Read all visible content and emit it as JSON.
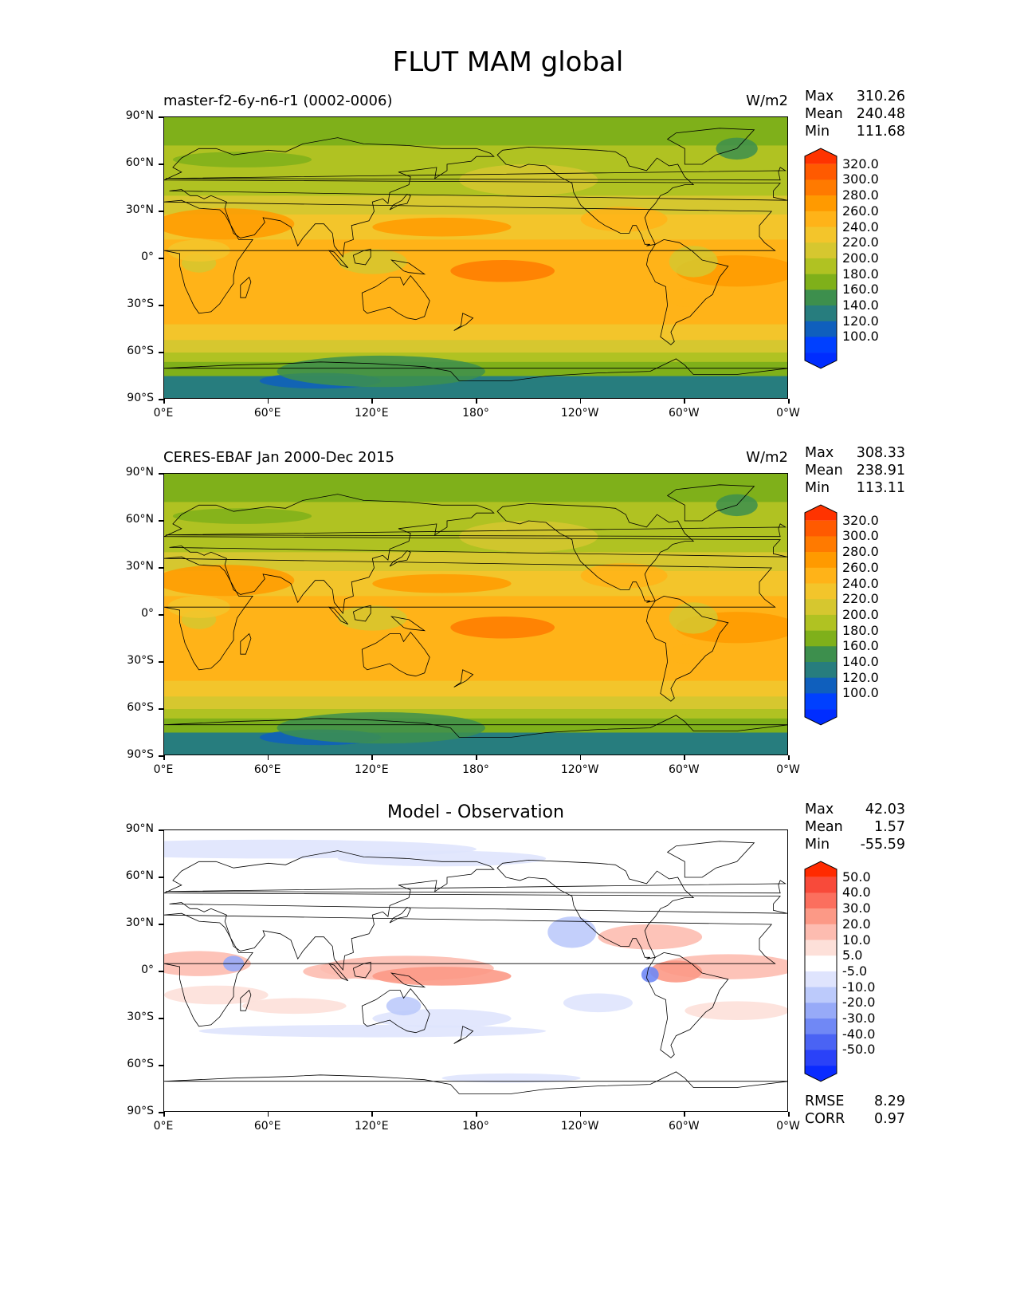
{
  "figure_title": "FLUT MAM global",
  "panels": [
    {
      "id": "model",
      "left_title": "master-f2-6y-n6-r1 (0002-0006)",
      "right_title": "W/m2",
      "center_title": "",
      "stats": {
        "max_label": "Max",
        "max": "310.26",
        "mean_label": "Mean",
        "mean": "240.48",
        "min_label": "Min",
        "min": "111.68"
      },
      "colorbar": {
        "labels": [
          "320.0",
          "300.0",
          "280.0",
          "260.0",
          "240.0",
          "220.0",
          "200.0",
          "180.0",
          "160.0",
          "140.0",
          "120.0",
          "100.0"
        ],
        "colors": [
          "#ff3300",
          "#ff5a00",
          "#ff7a00",
          "#ff9a00",
          "#ffb318",
          "#f3c52b",
          "#d6c72f",
          "#b0c222",
          "#7fb01a",
          "#3d8f4d",
          "#277d7e",
          "#0f5fbd",
          "#0040ff",
          "#002dff"
        ]
      }
    },
    {
      "id": "obs",
      "left_title": "CERES-EBAF Jan 2000-Dec 2015",
      "right_title": "W/m2",
      "center_title": "",
      "stats": {
        "max_label": "Max",
        "max": "308.33",
        "mean_label": "Mean",
        "mean": "238.91",
        "min_label": "Min",
        "min": "113.11"
      },
      "colorbar": {
        "labels": [
          "320.0",
          "300.0",
          "280.0",
          "260.0",
          "240.0",
          "220.0",
          "200.0",
          "180.0",
          "160.0",
          "140.0",
          "120.0",
          "100.0"
        ],
        "colors": [
          "#ff3300",
          "#ff5a00",
          "#ff7a00",
          "#ff9a00",
          "#ffb318",
          "#f3c52b",
          "#d6c72f",
          "#b0c222",
          "#7fb01a",
          "#3d8f4d",
          "#277d7e",
          "#0f5fbd",
          "#0040ff",
          "#002dff"
        ]
      }
    },
    {
      "id": "diff",
      "left_title": "",
      "right_title": "",
      "center_title": "Model - Observation",
      "stats": {
        "max_label": "Max",
        "max": "42.03",
        "mean_label": "Mean",
        "mean": "1.57",
        "min_label": "Min",
        "min": "-55.59"
      },
      "colorbar": {
        "labels": [
          "50.0",
          "40.0",
          "30.0",
          "20.0",
          "10.0",
          "5.0",
          "-5.0",
          "-10.0",
          "-20.0",
          "-30.0",
          "-40.0",
          "-50.0"
        ],
        "colors": [
          "#ff2a00",
          "#f84a3a",
          "#fb6f5e",
          "#fc9986",
          "#fdbcb0",
          "#fde0d9",
          "#ffffff",
          "#dfe4fd",
          "#bccafb",
          "#97aaf8",
          "#7088f5",
          "#4a63f4",
          "#2a42f8",
          "#0a2bff"
        ]
      },
      "extra_stats": {
        "rmse_label": "RMSE",
        "rmse": "8.29",
        "corr_label": "CORR",
        "corr": "0.97"
      }
    }
  ],
  "axes": {
    "y_ticks": [
      "90°N",
      "60°N",
      "30°N",
      "0°",
      "30°S",
      "60°S",
      "90°S"
    ],
    "x_ticks": [
      "0°E",
      "60°E",
      "120°E",
      "180°",
      "120°W",
      "60°W",
      "0°W"
    ]
  },
  "chart_data": {
    "type": "heatmap",
    "variable": "FLUT",
    "season": "MAM",
    "units": "W/m2",
    "projection": "PlateCarree",
    "lon_range": [
      0,
      360
    ],
    "lat_range": [
      -90,
      90
    ],
    "panels": [
      {
        "name": "master-f2-6y-n6-r1 (0002-0006)",
        "max": 310.26,
        "mean": 240.48,
        "min": 111.68,
        "levels": [
          100,
          120,
          140,
          160,
          180,
          200,
          220,
          240,
          260,
          280,
          300,
          320
        ]
      },
      {
        "name": "CERES-EBAF Jan 2000-Dec 2015",
        "max": 308.33,
        "mean": 238.91,
        "min": 113.11,
        "levels": [
          100,
          120,
          140,
          160,
          180,
          200,
          220,
          240,
          260,
          280,
          300,
          320
        ]
      },
      {
        "name": "Model - Observation",
        "max": 42.03,
        "mean": 1.57,
        "min": -55.59,
        "rmse": 8.29,
        "corr": 0.97,
        "levels": [
          -50,
          -40,
          -30,
          -20,
          -10,
          -5,
          5,
          10,
          20,
          30,
          40,
          50
        ]
      }
    ]
  }
}
